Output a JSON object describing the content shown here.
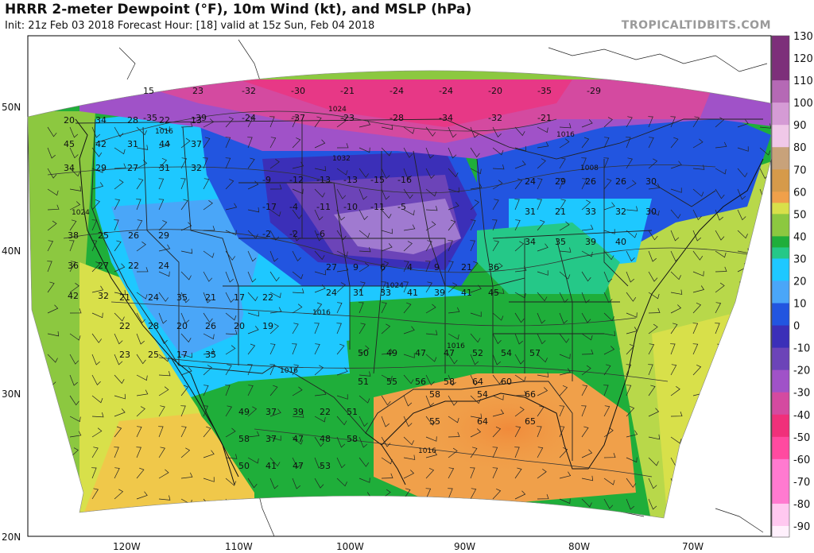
{
  "header": {
    "title": "HRRR 2-meter Dewpoint (°F), 10m Wind (kt), and MSLP (hPa)",
    "subtitle": "Init: 21z Feb 03 2018   Forecast Hour: [18]   valid at 15z Sun, Feb 04 2018",
    "watermark": "TROPICALTIDBITS.COM"
  },
  "axes": {
    "lat_labels": [
      "50N",
      "40N",
      "30N",
      "20N"
    ],
    "lon_labels": [
      "120W",
      "110W",
      "100W",
      "90W",
      "80W",
      "70W"
    ]
  },
  "colorbar": {
    "labels": [
      "130",
      "120",
      "110",
      "100",
      "90",
      "80",
      "70",
      "60",
      "50",
      "40",
      "30",
      "20",
      "10",
      "0",
      "-10",
      "-20",
      "-30",
      "-40",
      "-50",
      "-60",
      "-70",
      "-80",
      "-90"
    ],
    "stops": [
      {
        "v": 130,
        "c": "#7d2f7a"
      },
      {
        "v": 110,
        "c": "#b569b5"
      },
      {
        "v": 100,
        "c": "#d59bd5"
      },
      {
        "v": 90,
        "c": "#f0c8e8"
      },
      {
        "v": 80,
        "c": "#c8a27a"
      },
      {
        "v": 70,
        "c": "#d69a4a"
      },
      {
        "v": 60,
        "c": "#f0a04a"
      },
      {
        "v": 55,
        "c": "#d8e04a"
      },
      {
        "v": 50,
        "c": "#8cc840"
      },
      {
        "v": 40,
        "c": "#1fae3a"
      },
      {
        "v": 35,
        "c": "#25c888"
      },
      {
        "v": 30,
        "c": "#1ec8ff"
      },
      {
        "v": 20,
        "c": "#4aa6f8"
      },
      {
        "v": 10,
        "c": "#2255e0"
      },
      {
        "v": 0,
        "c": "#3b2fb8"
      },
      {
        "v": -10,
        "c": "#6c44b8"
      },
      {
        "v": -20,
        "c": "#a052c8"
      },
      {
        "v": -30,
        "c": "#d44aa0"
      },
      {
        "v": -40,
        "c": "#f0307a"
      },
      {
        "v": -50,
        "c": "#ff4aa0"
      },
      {
        "v": -60,
        "c": "#ff7ad0"
      },
      {
        "v": -80,
        "c": "#ffc8f0"
      },
      {
        "v": -90,
        "c": "#fff0fc"
      }
    ]
  },
  "regions": [
    {
      "name": "pacific-northwest",
      "label_values": [
        "20",
        "34",
        "28",
        "22",
        "13",
        "45",
        "42",
        "31",
        "44",
        "37",
        "34",
        "29",
        "27",
        "31",
        "32"
      ],
      "color": "#8cc840"
    },
    {
      "name": "west-coast",
      "label_values": [
        "38",
        "25",
        "26",
        "29",
        "36",
        "27",
        "22",
        "24",
        "42",
        "32"
      ],
      "color": "#8cc840"
    },
    {
      "name": "southwest",
      "label_values": [
        "21",
        "24",
        "35",
        "21",
        "17",
        "22",
        "22",
        "28",
        "20",
        "26",
        "20",
        "19",
        "23",
        "25",
        "17",
        "35"
      ],
      "color": "#4aa6f8"
    },
    {
      "name": "mexico",
      "label_values": [
        "49",
        "37",
        "39",
        "22",
        "51",
        "58",
        "37",
        "47",
        "48",
        "58",
        "50",
        "41",
        "47",
        "53"
      ],
      "color": "#1fae3a"
    },
    {
      "name": "gulf-of-mexico",
      "label_values": [
        "58",
        "54",
        "66",
        "55",
        "64",
        "65"
      ],
      "color": "#f0a04a"
    },
    {
      "name": "great-plains",
      "label_values": [
        "-9",
        "-12",
        "-13",
        "-13",
        "-15",
        "-16",
        "-17",
        "-4",
        "-11",
        "-10",
        "-11",
        "-5",
        "-2",
        "-2",
        "-6"
      ],
      "color": "#6c44b8"
    },
    {
      "name": "southern-plains",
      "label_values": [
        "27",
        "9",
        "6",
        "4",
        "9",
        "21",
        "36",
        "24",
        "31",
        "33",
        "41",
        "39",
        "41",
        "45"
      ],
      "color": "#1ec8ff"
    },
    {
      "name": "southeast",
      "label_values": [
        "50",
        "49",
        "47",
        "47",
        "52",
        "54",
        "57",
        "51",
        "55",
        "56",
        "58",
        "64",
        "60"
      ],
      "color": "#1fae3a"
    },
    {
      "name": "northeast",
      "label_values": [
        "24",
        "29",
        "26",
        "26",
        "30",
        "31",
        "21",
        "33",
        "32",
        "30",
        "34",
        "35",
        "39",
        "40"
      ],
      "color": "#2255e0"
    },
    {
      "name": "canada",
      "label_values": [
        "15",
        "23",
        "-32",
        "-30",
        "-21",
        "-24",
        "-24",
        "-20",
        "-35",
        "-29",
        "-35",
        "-39",
        "-24",
        "-37",
        "-23",
        "-28",
        "-34",
        "-32",
        "-21"
      ],
      "color": "#d44aa0"
    }
  ],
  "pressure_labels": [
    "1024",
    "1016",
    "1032",
    "1024",
    "1016",
    "1008",
    "1016",
    "1016",
    "1016",
    "1024",
    "1016"
  ]
}
